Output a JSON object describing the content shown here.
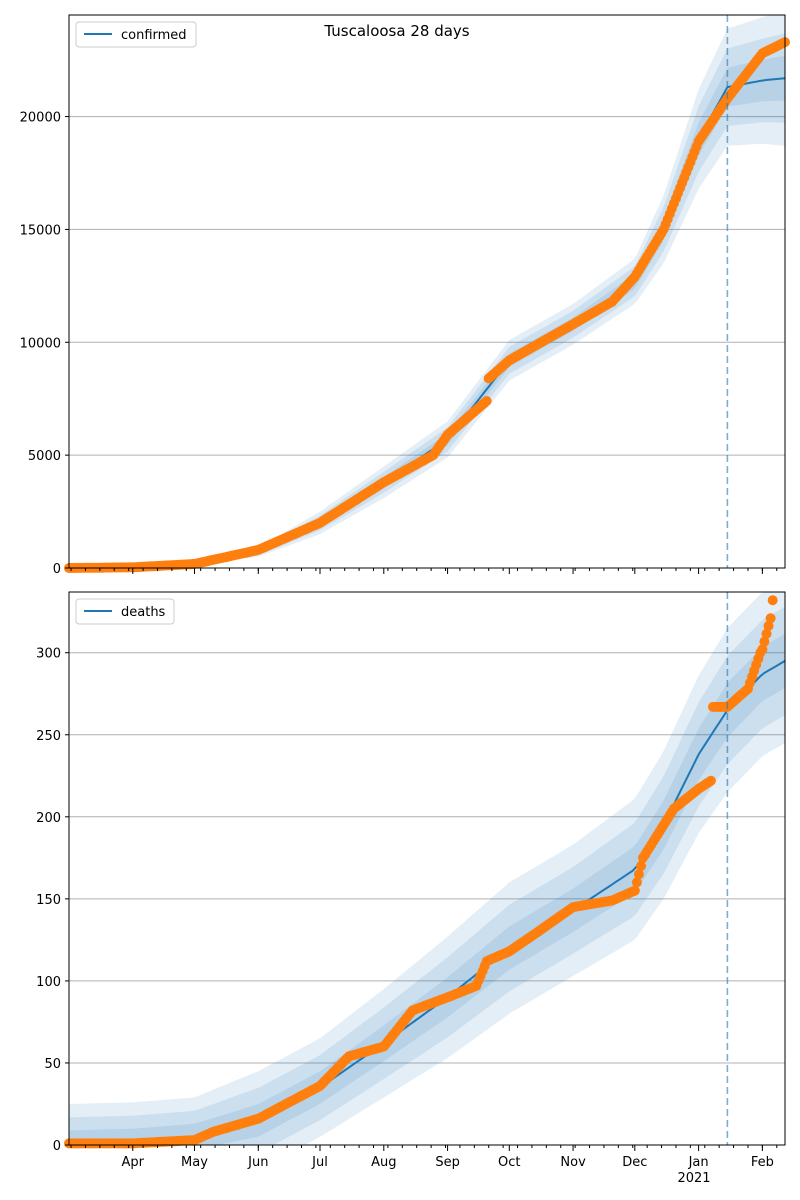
{
  "figure_title": "Tuscaloosa 28 days",
  "colors": {
    "model": "#1f77b4",
    "observed": "#ff7f0e",
    "band": "#1f77b4",
    "forecast_line": "#1f77b4",
    "grid": "#b0b0b0"
  },
  "chart_data": [
    {
      "type": "line",
      "legend": "confirmed",
      "legend_position": "top-left",
      "x_range": [
        "2020-03-01",
        "2021-02-12"
      ],
      "ylim": [
        0,
        24500
      ],
      "yticks": [
        0,
        5000,
        10000,
        15000,
        20000
      ],
      "grid": "horizontal",
      "forecast_start": "2021-01-15",
      "series": [
        {
          "kind": "model",
          "x": [
            "2020-03-01",
            "2020-04-01",
            "2020-05-01",
            "2020-06-01",
            "2020-07-01",
            "2020-08-01",
            "2020-09-01",
            "2020-10-01",
            "2020-11-01",
            "2020-12-01",
            "2020-12-15",
            "2021-01-01",
            "2021-01-15",
            "2021-02-01",
            "2021-02-12"
          ],
          "values": [
            0,
            50,
            200,
            700,
            2000,
            3800,
            5700,
            9200,
            10800,
            12700,
            15000,
            19000,
            21300,
            21600,
            21700
          ],
          "band_spread": [
            0,
            20,
            60,
            200,
            500,
            700,
            800,
            900,
            900,
            1000,
            1500,
            2200,
            2600,
            2800,
            3000
          ]
        },
        {
          "kind": "observed",
          "x": [
            "2020-03-01",
            "2020-04-01",
            "2020-05-01",
            "2020-06-01",
            "2020-07-01",
            "2020-08-01",
            "2020-08-25",
            "2020-09-01",
            "2020-09-20",
            "2020-09-21",
            "2020-10-01",
            "2020-11-01",
            "2020-11-20",
            "2020-12-01",
            "2020-12-15",
            "2021-01-01",
            "2021-01-15",
            "2021-02-01",
            "2021-02-12"
          ],
          "values": [
            0,
            30,
            180,
            800,
            2000,
            3800,
            5000,
            5900,
            7400,
            8400,
            9200,
            10800,
            11800,
            12900,
            15000,
            18900,
            20800,
            22800,
            23300
          ]
        }
      ]
    },
    {
      "type": "line",
      "legend": "deaths",
      "legend_position": "top-left",
      "x_range": [
        "2020-03-01",
        "2021-02-12"
      ],
      "ylim": [
        0,
        337
      ],
      "yticks": [
        0,
        50,
        100,
        150,
        200,
        250,
        300
      ],
      "grid": "horizontal",
      "forecast_start": "2021-01-15",
      "xticks": [
        "Apr",
        "May",
        "Jun",
        "Jul",
        "Aug",
        "Sep",
        "Oct",
        "Nov",
        "Dec",
        "Jan",
        "Feb"
      ],
      "xtick_dates": [
        "2020-04-01",
        "2020-05-01",
        "2020-06-01",
        "2020-07-01",
        "2020-08-01",
        "2020-09-01",
        "2020-10-01",
        "2020-11-01",
        "2020-12-01",
        "2021-01-01",
        "2021-02-01"
      ],
      "x_secondary_label": "2021",
      "series": [
        {
          "kind": "model",
          "x": [
            "2020-03-01",
            "2020-04-01",
            "2020-05-01",
            "2020-06-01",
            "2020-07-01",
            "2020-08-01",
            "2020-09-01",
            "2020-10-01",
            "2020-11-01",
            "2020-12-01",
            "2020-12-15",
            "2021-01-01",
            "2021-01-15",
            "2021-02-01",
            "2021-02-12"
          ],
          "values": [
            1,
            2,
            5,
            15,
            35,
            62,
            90,
            120,
            143,
            168,
            195,
            238,
            265,
            287,
            295
          ],
          "band_spread": [
            24,
            24,
            24,
            30,
            30,
            33,
            37,
            40,
            40,
            43,
            45,
            48,
            50,
            50,
            50
          ]
        },
        {
          "kind": "observed",
          "x": [
            "2020-03-01",
            "2020-04-01",
            "2020-05-01",
            "2020-05-10",
            "2020-06-01",
            "2020-07-01",
            "2020-07-15",
            "2020-08-01",
            "2020-08-15",
            "2020-09-01",
            "2020-09-15",
            "2020-09-20",
            "2020-10-01",
            "2020-10-15",
            "2020-11-01",
            "2020-11-20",
            "2020-12-01",
            "2020-12-05",
            "2020-12-20",
            "2021-01-01",
            "2021-01-07",
            "2021-01-08",
            "2021-01-15",
            "2021-01-25",
            "2021-01-31",
            "2021-02-01",
            "2021-02-05",
            "2021-02-06"
          ],
          "values": [
            1,
            1,
            3,
            8,
            16,
            36,
            54,
            60,
            82,
            90,
            97,
            112,
            118,
            130,
            145,
            149,
            155,
            175,
            205,
            217,
            222,
            267,
            267,
            278,
            300,
            302,
            321,
            332
          ]
        }
      ]
    }
  ]
}
